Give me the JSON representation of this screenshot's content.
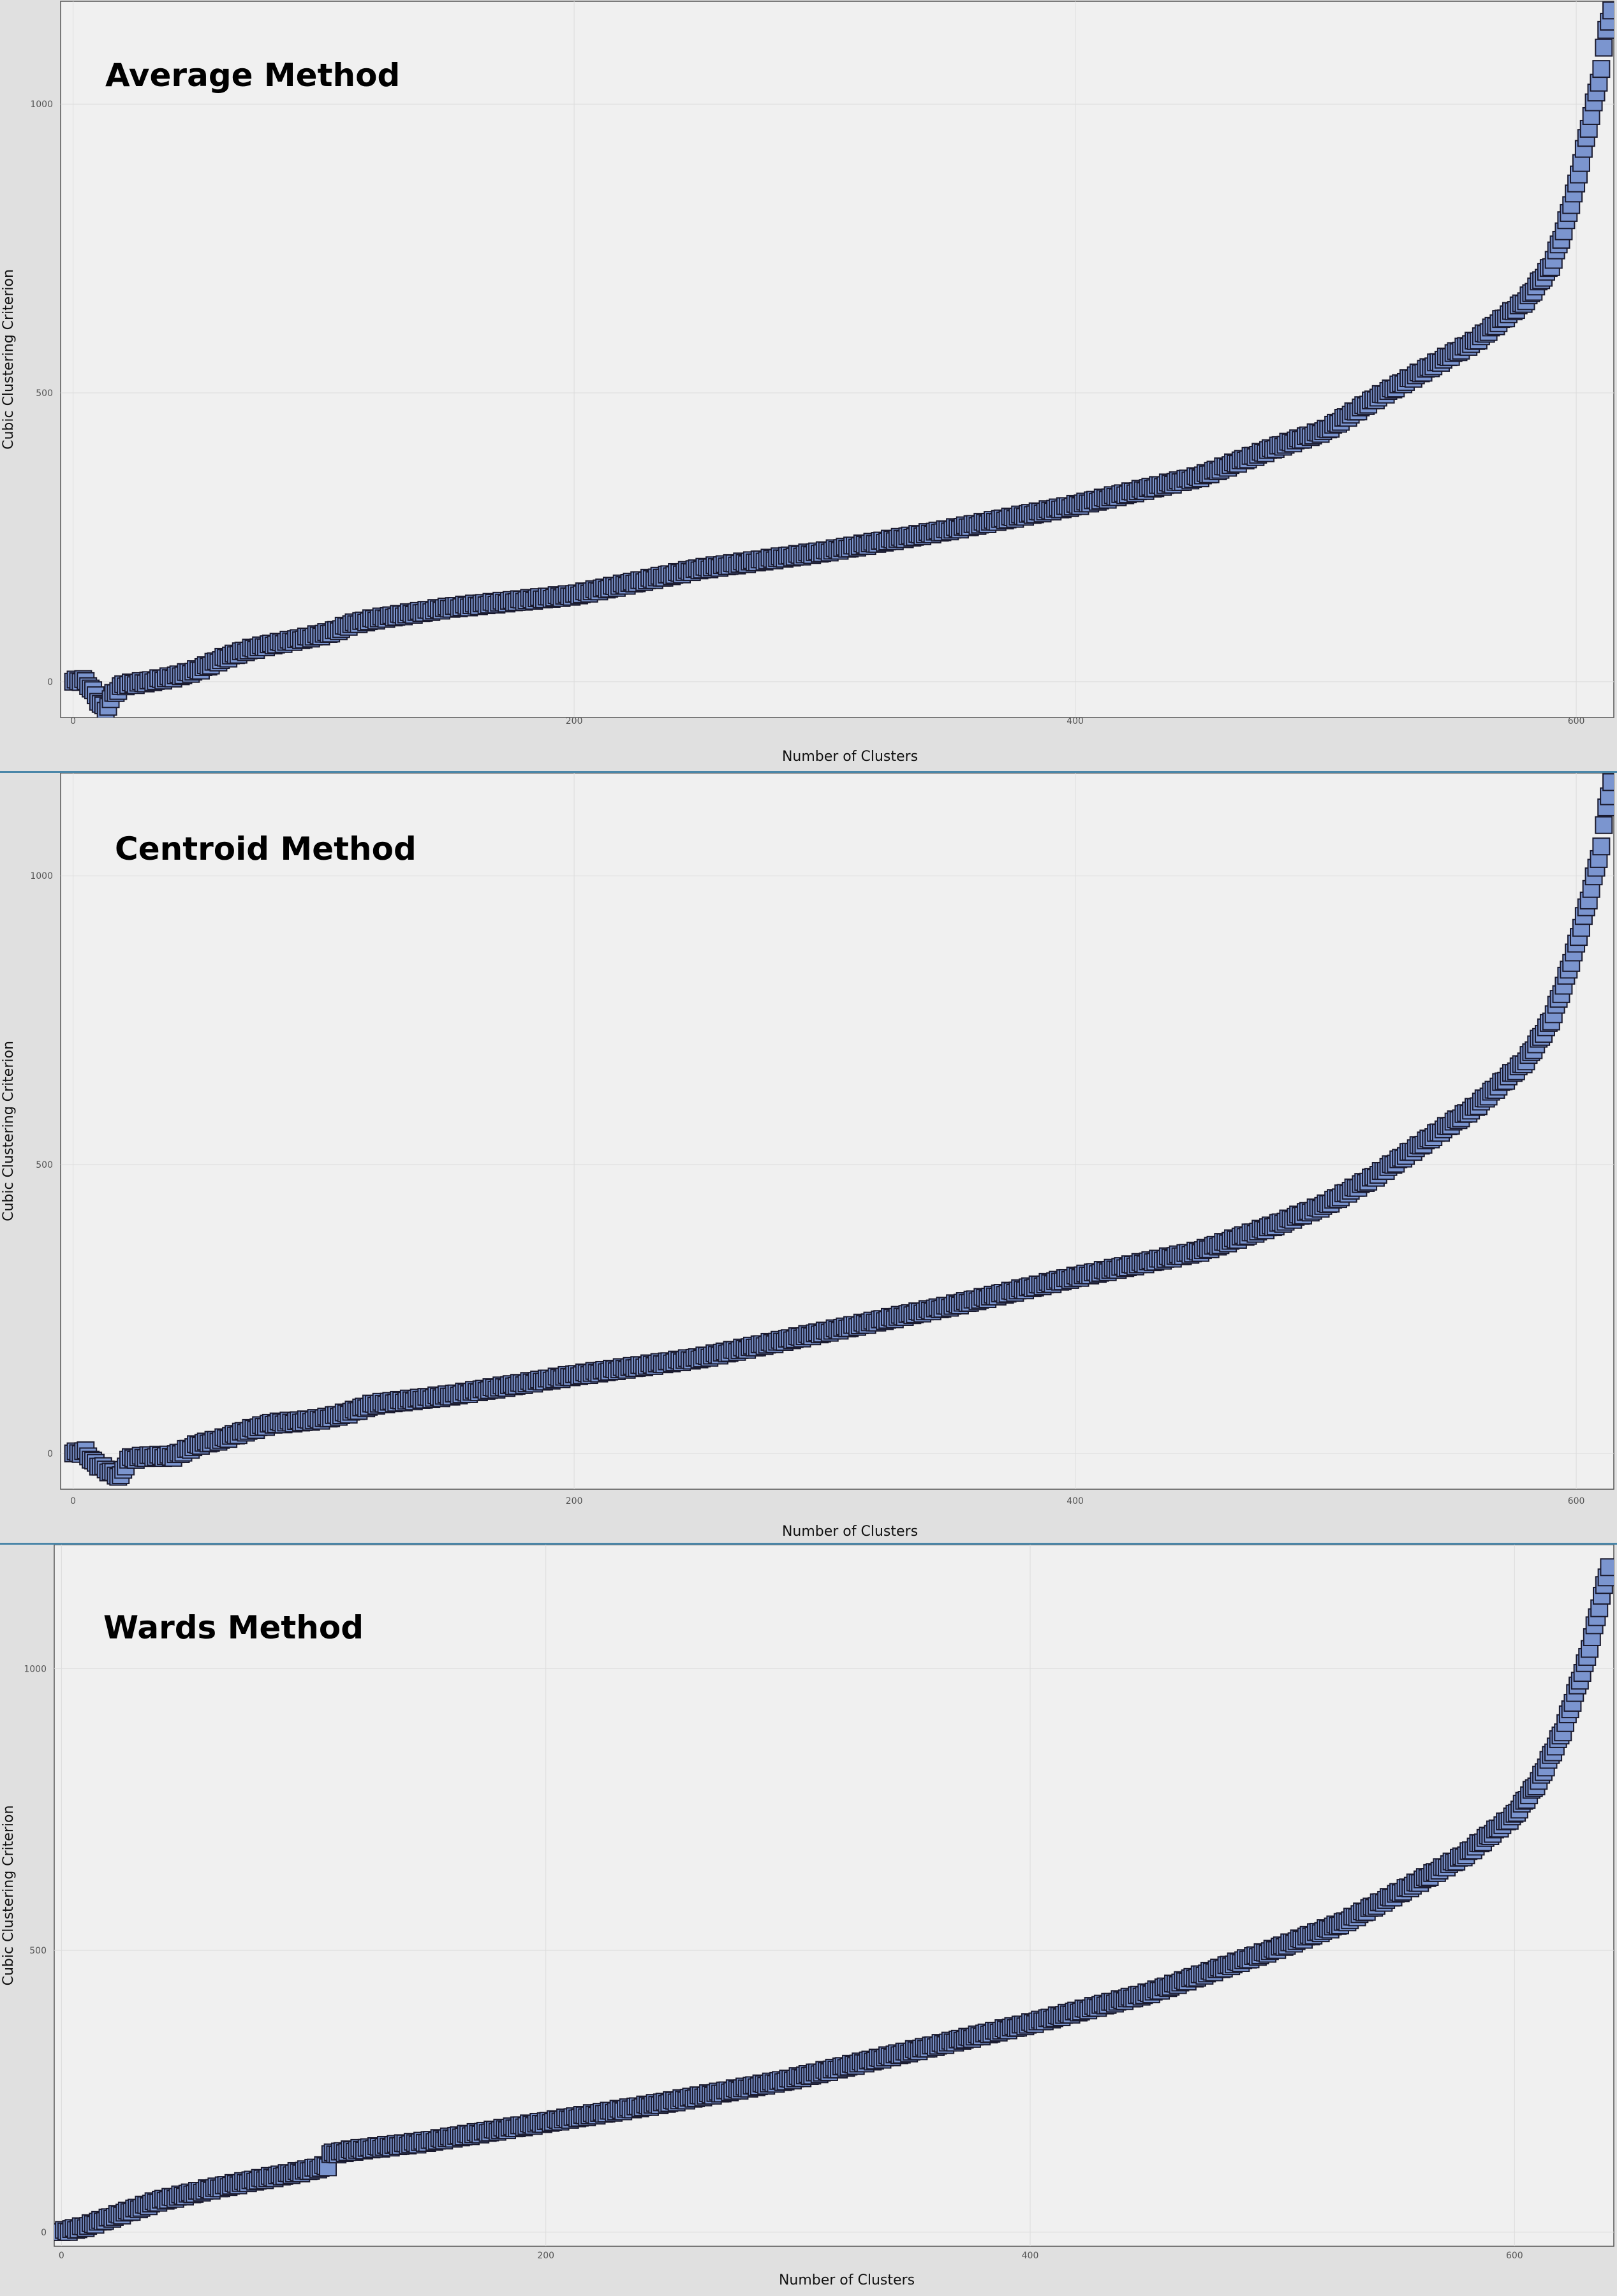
{
  "chart_data": [
    {
      "type": "scatter",
      "title": "Average Method",
      "xlabel": "Number of Clusters",
      "ylabel": "Cubic Clustering Criterion",
      "xlim": [
        -5,
        615
      ],
      "ylim": [
        -62,
        1178
      ],
      "xticks": [
        0,
        200,
        400,
        600
      ],
      "xtick_labels": [
        "0",
        "200",
        "400",
        "600"
      ],
      "yticks": [
        0,
        500,
        1000
      ],
      "ytick_labels": [
        "0",
        "500",
        "1000"
      ],
      "grid": true,
      "marker": "square",
      "marker_color": "#7b95cf",
      "marker_edge_color": "#1a1a2e",
      "n_points": 615,
      "curve_knots": {
        "x": [
          0,
          4,
          7,
          10,
          13,
          16,
          20,
          30,
          40,
          50,
          60,
          70,
          80,
          90,
          100,
          105,
          110,
          120,
          150,
          200,
          250,
          300,
          350,
          400,
          450,
          480,
          500,
          520,
          540,
          560,
          580,
          590,
          595,
          600,
          605,
          610,
          612,
          614
        ],
        "y": [
          0,
          3,
          -10,
          -32,
          -50,
          -22,
          -6,
          0,
          8,
          20,
          40,
          55,
          65,
          73,
          82,
          88,
          98,
          108,
          128,
          150,
          195,
          225,
          263,
          305,
          355,
          405,
          435,
          490,
          540,
          590,
          660,
          720,
          780,
          860,
          960,
          1060,
          1130,
          1160
        ]
      }
    },
    {
      "type": "scatter",
      "title": "Centroid Method",
      "xlabel": "Number of Clusters",
      "ylabel": "Cubic Clustering Criterion",
      "xlim": [
        -5,
        615
      ],
      "ylim": [
        -62,
        1178
      ],
      "xticks": [
        0,
        200,
        400,
        600
      ],
      "xtick_labels": [
        "0",
        "200",
        "400",
        "600"
      ],
      "yticks": [
        0,
        500,
        1000
      ],
      "ytick_labels": [
        "0",
        "500",
        "1000"
      ],
      "grid": true,
      "marker": "square",
      "marker_color": "#7b95cf",
      "marker_edge_color": "#1a1a2e",
      "n_points": 615,
      "curve_knots": {
        "x": [
          0,
          5,
          8,
          12,
          16,
          19,
          22,
          30,
          40,
          50,
          60,
          70,
          80,
          90,
          100,
          110,
          120,
          150,
          200,
          250,
          300,
          350,
          400,
          450,
          480,
          500,
          520,
          540,
          560,
          580,
          590,
          595,
          600,
          605,
          610,
          612,
          614
        ],
        "y": [
          0,
          3,
          -15,
          -25,
          -35,
          -40,
          -10,
          -5,
          -5,
          15,
          25,
          40,
          52,
          55,
          60,
          70,
          85,
          100,
          135,
          165,
          210,
          255,
          305,
          350,
          395,
          430,
          480,
          540,
          600,
          680,
          750,
          810,
          880,
          960,
          1050,
          1120,
          1160
        ]
      }
    },
    {
      "type": "scatter",
      "title": "Wards Method",
      "xlabel": "Number of Clusters",
      "ylabel": "Cubic Clustering Criterion",
      "xlim": [
        -3,
        641
      ],
      "ylim": [
        -25,
        1220
      ],
      "xticks": [
        0,
        200,
        400,
        600
      ],
      "xtick_labels": [
        "0",
        "200",
        "400",
        "600"
      ],
      "yticks": [
        0,
        500,
        1000
      ],
      "ytick_labels": [
        "0",
        "500",
        "1000"
      ],
      "grid": true,
      "marker": "square",
      "marker_color": "#7b95cf",
      "marker_edge_color": "#1a1a2e",
      "n_points": 640,
      "curve_knots": {
        "x": [
          0,
          10,
          20,
          30,
          40,
          50,
          60,
          80,
          100,
          110,
          111,
          120,
          150,
          200,
          250,
          300,
          350,
          400,
          450,
          500,
          530,
          560,
          580,
          600,
          610,
          620,
          630,
          635,
          640
        ],
        "y": [
          0,
          10,
          25,
          40,
          55,
          65,
          75,
          92,
          108,
          118,
          138,
          145,
          160,
          195,
          230,
          270,
          320,
          370,
          425,
          500,
          550,
          620,
          670,
          740,
          800,
          890,
          1020,
          1110,
          1200
        ]
      }
    }
  ]
}
